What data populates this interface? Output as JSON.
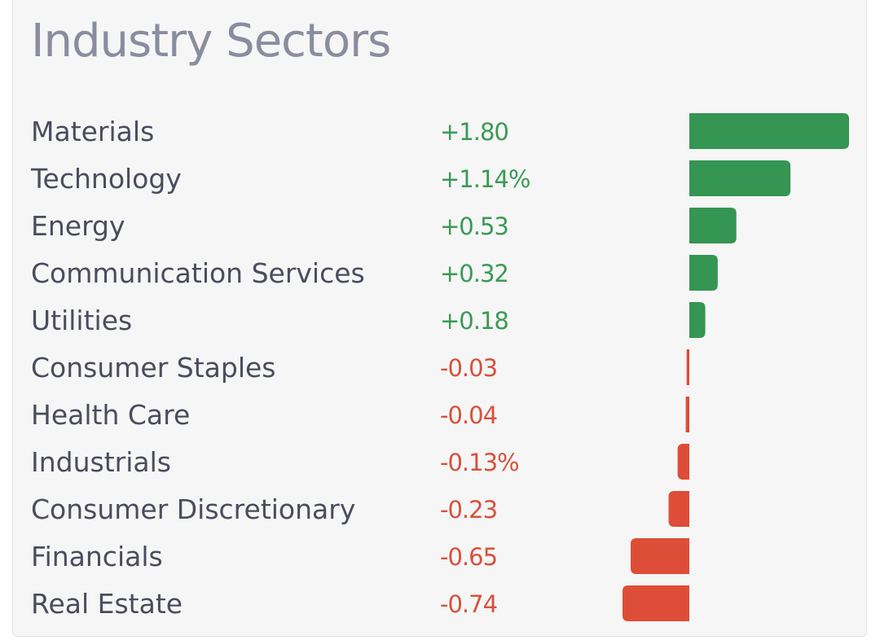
{
  "title": "Industry Sectors",
  "colors": {
    "positive": "#359553",
    "negative": "#dd4d38",
    "positive_text": "#3a9a54",
    "negative_text": "#d9503c",
    "title": "#8a8d9f",
    "label": "#4a4c5e",
    "background": "#f6f6f6"
  },
  "chart_data": {
    "type": "bar",
    "orientation": "horizontal",
    "title": "Industry Sectors",
    "categories": [
      "Materials",
      "Technology",
      "Energy",
      "Communication Services",
      "Utilities",
      "Consumer Staples",
      "Health Care",
      "Industrials",
      "Consumer Discretionary",
      "Financials",
      "Real Estate"
    ],
    "values": [
      1.8,
      1.14,
      0.53,
      0.32,
      0.18,
      -0.03,
      -0.04,
      -0.13,
      -0.23,
      -0.65,
      -0.74
    ],
    "value_labels": [
      "+1.80",
      "+1.14%",
      "+0.53",
      "+0.32",
      "+0.18",
      "-0.03",
      "-0.04",
      "-0.13%",
      "-0.23",
      "-0.65",
      "-0.74"
    ],
    "xlabel": "",
    "ylabel": "",
    "xlim": [
      -0.74,
      1.8
    ],
    "grid": false,
    "legend": "none"
  }
}
